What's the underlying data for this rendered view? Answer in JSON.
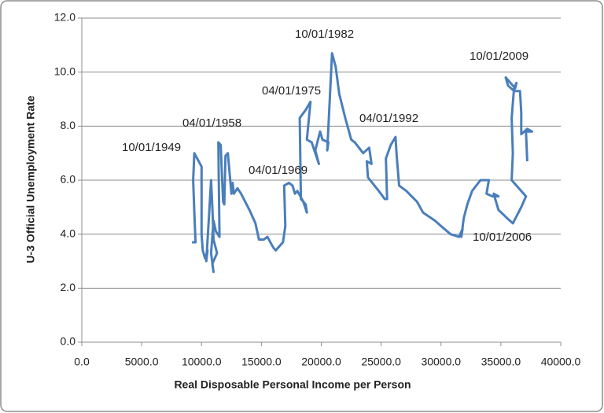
{
  "chart_data": {
    "type": "line",
    "xlabel": "Real Disposable Personal Income per Person",
    "ylabel": "U-3 Official Unemployment Rate",
    "color": "#4a7ebb",
    "grid": true,
    "xlim": [
      0,
      40000
    ],
    "ylim": [
      0,
      12
    ],
    "xticks": [
      {
        "value": 0,
        "label": "0.0"
      },
      {
        "value": 5000,
        "label": "5000.0"
      },
      {
        "value": 10000,
        "label": "10000.0"
      },
      {
        "value": 15000,
        "label": "15000.0"
      },
      {
        "value": 20000,
        "label": "20000.0"
      },
      {
        "value": 25000,
        "label": "25000.0"
      },
      {
        "value": 30000,
        "label": "30000.0"
      },
      {
        "value": 35000,
        "label": "35000.0"
      },
      {
        "value": 40000,
        "label": "40000.0"
      }
    ],
    "yticks": [
      {
        "value": 0,
        "label": "0.0"
      },
      {
        "value": 2,
        "label": "2.0"
      },
      {
        "value": 4,
        "label": "4.0"
      },
      {
        "value": 6,
        "label": "6.0"
      },
      {
        "value": 8,
        "label": "8.0"
      },
      {
        "value": 10,
        "label": "10.0"
      },
      {
        "value": 12,
        "label": "12.0"
      }
    ],
    "annotations": [
      "10/01/1949",
      "04/01/1958",
      "04/01/1969",
      "04/01/1975",
      "10/01/1982",
      "04/01/1992",
      "10/01/2009",
      "10/01/2006"
    ],
    "x": [
      9200,
      9500,
      9400,
      9300,
      9400,
      10000,
      10000,
      10100,
      10300,
      10500,
      10400,
      10600,
      10800,
      10900,
      11000,
      11300,
      10900,
      11000,
      10800,
      11000,
      11200,
      11500,
      11400,
      11600,
      11800,
      11900,
      12000,
      12200,
      12500,
      12600,
      12700,
      13000,
      13300,
      14000,
      14500,
      14800,
      15200,
      15500,
      16000,
      16200,
      16800,
      17000,
      16900,
      17300,
      17600,
      17800,
      18000,
      18500,
      18800,
      18700,
      18300,
      18200,
      18700,
      19100,
      18800,
      19200,
      19500,
      19800,
      19500,
      19900,
      20100,
      20600,
      20500,
      20900,
      21200,
      21500,
      22000,
      22500,
      22800,
      23500,
      24000,
      24200,
      23800,
      23900,
      24800,
      25300,
      25500,
      25400,
      25800,
      26200,
      26300,
      26500,
      27100,
      28000,
      28500,
      29500,
      30000,
      30800,
      31500,
      31800,
      31700,
      31900,
      32200,
      32600,
      33300,
      34000,
      33800,
      34300,
      34800,
      34400,
      34800,
      35500,
      36000,
      36700,
      37100,
      35900,
      36000,
      35900,
      36100,
      36300,
      36200,
      35400,
      35600,
      36100,
      36600,
      36700,
      36700,
      37200,
      37600,
      37100,
      37200
    ],
    "values": [
      3.7,
      3.7,
      4.8,
      6.0,
      7.0,
      6.5,
      4.0,
      3.4,
      3.1,
      3.4,
      3.0,
      4.5,
      6.0,
      5.0,
      3.8,
      3.3,
      2.9,
      2.6,
      3.3,
      4.5,
      4.1,
      3.9,
      7.4,
      7.3,
      5.2,
      5.1,
      6.9,
      7.0,
      5.5,
      5.9,
      5.5,
      5.7,
      5.5,
      4.9,
      4.4,
      3.8,
      3.8,
      3.9,
      3.5,
      3.4,
      3.7,
      4.3,
      5.8,
      5.9,
      5.8,
      5.5,
      5.6,
      5.2,
      4.8,
      5.1,
      5.3,
      8.3,
      8.6,
      8.9,
      7.5,
      7.4,
      7.0,
      6.6,
      7.1,
      7.8,
      7.5,
      7.4,
      7.1,
      10.7,
      10.2,
      9.2,
      8.3,
      7.5,
      7.4,
      7.0,
      7.2,
      6.6,
      6.7,
      6.1,
      5.6,
      5.3,
      5.3,
      6.8,
      7.3,
      7.6,
      6.9,
      5.8,
      5.6,
      5.2,
      4.8,
      4.5,
      4.3,
      4.0,
      3.9,
      4.2,
      3.9,
      4.6,
      5.1,
      5.6,
      6.0,
      6.0,
      5.5,
      5.4,
      5.4,
      5.5,
      4.9,
      4.6,
      4.4,
      5.0,
      5.4,
      6.0,
      7.0,
      8.3,
      9.4,
      9.6,
      9.4,
      9.8,
      9.5,
      9.3,
      9.3,
      8.5,
      7.7,
      7.9,
      7.8,
      7.8,
      6.7
    ]
  }
}
